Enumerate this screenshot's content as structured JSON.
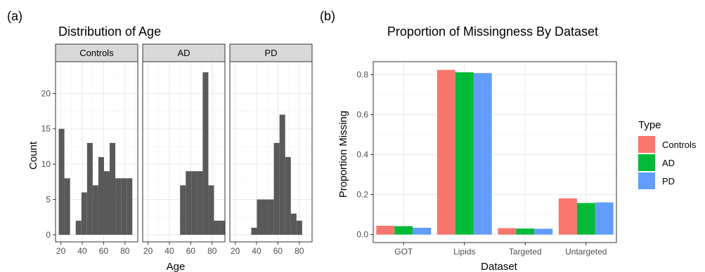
{
  "panel_labels": {
    "a": "(a)",
    "b": "(b)"
  },
  "chart_data": [
    {
      "type": "bar",
      "subtype": "histogram-facets",
      "title": "Distribution of Age",
      "xlabel": "Age",
      "ylabel": "Count",
      "xlim": [
        15,
        92
      ],
      "ylim": [
        -1,
        24.5
      ],
      "xticks": [
        20,
        40,
        60,
        80
      ],
      "yticks": [
        0,
        5,
        10,
        15,
        20
      ],
      "bin_width": 5.3,
      "bar_color": "#595959",
      "facets": [
        {
          "name": "Controls",
          "bins_start": [
            18,
            23.3,
            28.6,
            33.9,
            39.2,
            44.5,
            49.8,
            55.1,
            60.4,
            65.7,
            71,
            76.3,
            81.6
          ],
          "counts": [
            15,
            8,
            0,
            2,
            6,
            13,
            7,
            11,
            9,
            13,
            8,
            8,
            8
          ]
        },
        {
          "name": "AD",
          "bins_start": [
            50,
            55.3,
            60.6,
            65.9,
            71.2,
            76.5,
            81.8,
            87.1
          ],
          "counts": [
            7,
            9,
            9,
            9,
            23,
            7,
            2,
            2
          ]
        },
        {
          "name": "PD",
          "bins_start": [
            35,
            40.3,
            45.6,
            50.9,
            56.2,
            61.5,
            66.8,
            72.1,
            77.4
          ],
          "counts": [
            1,
            5,
            5,
            5,
            13,
            17,
            11,
            3,
            2
          ]
        }
      ]
    },
    {
      "type": "bar",
      "subtype": "grouped",
      "title": "Proportion of Missingness By Dataset",
      "xlabel": "Dataset",
      "ylabel": "Proportion Missing",
      "categories": [
        "GOT",
        "Lipids",
        "Targeted",
        "Untargeted"
      ],
      "ylim": [
        -0.04,
        0.865
      ],
      "yticks": [
        "0.0",
        "0.2",
        "0.4",
        "0.6",
        "0.8"
      ],
      "legend": {
        "title": "Type",
        "placement": "right"
      },
      "series": [
        {
          "name": "Controls",
          "color": "#F8766D",
          "values": [
            0.044,
            0.824,
            0.032,
            0.181
          ]
        },
        {
          "name": "AD",
          "color": "#00BA38",
          "values": [
            0.042,
            0.812,
            0.03,
            0.158
          ]
        },
        {
          "name": "PD",
          "color": "#619CFF",
          "values": [
            0.034,
            0.808,
            0.029,
            0.161
          ]
        }
      ]
    }
  ]
}
